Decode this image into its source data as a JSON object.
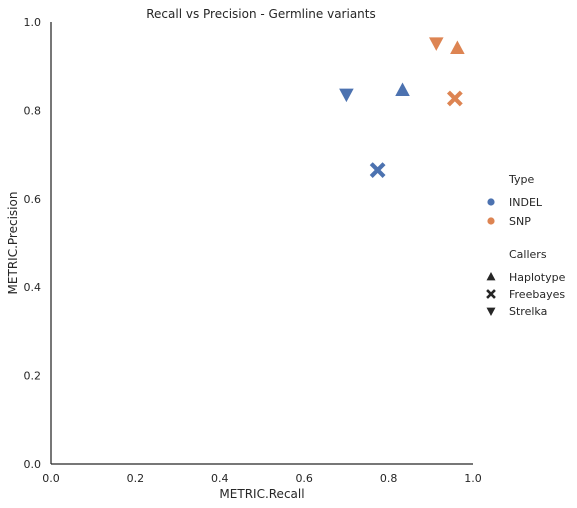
{
  "chart_data": {
    "type": "scatter",
    "title": "Recall vs Precision - Germline variants",
    "xlabel": "METRIC.Recall",
    "ylabel": "METRIC.Precision",
    "xlim": [
      0.0,
      1.0
    ],
    "ylim": [
      0.0,
      1.0
    ],
    "xticks": [
      "0.0",
      "0.2",
      "0.4",
      "0.6",
      "0.8",
      "1.0"
    ],
    "yticks": [
      "0.0",
      "0.2",
      "0.4",
      "0.6",
      "0.8",
      "1.0"
    ],
    "grid": false,
    "legend_position": "right",
    "legend": {
      "hue_title": "Type",
      "hue_entries": [
        {
          "name": "INDEL",
          "color": "#4c72b0"
        },
        {
          "name": "SNP",
          "color": "#dd8452"
        }
      ],
      "style_title": "Callers",
      "style_entries": [
        {
          "name": "Haplotype",
          "marker": "triangle-up"
        },
        {
          "name": "Freebayes",
          "marker": "x"
        },
        {
          "name": "Strelka",
          "marker": "triangle-down"
        }
      ]
    },
    "points": [
      {
        "type": "INDEL",
        "caller": "Haplotype",
        "x": 0.833,
        "y": 0.845
      },
      {
        "type": "INDEL",
        "caller": "Freebayes",
        "x": 0.774,
        "y": 0.665
      },
      {
        "type": "INDEL",
        "caller": "Strelka",
        "x": 0.7,
        "y": 0.837
      },
      {
        "type": "SNP",
        "caller": "Haplotype",
        "x": 0.963,
        "y": 0.94
      },
      {
        "type": "SNP",
        "caller": "Freebayes",
        "x": 0.957,
        "y": 0.827
      },
      {
        "type": "SNP",
        "caller": "Strelka",
        "x": 0.913,
        "y": 0.953
      }
    ]
  }
}
